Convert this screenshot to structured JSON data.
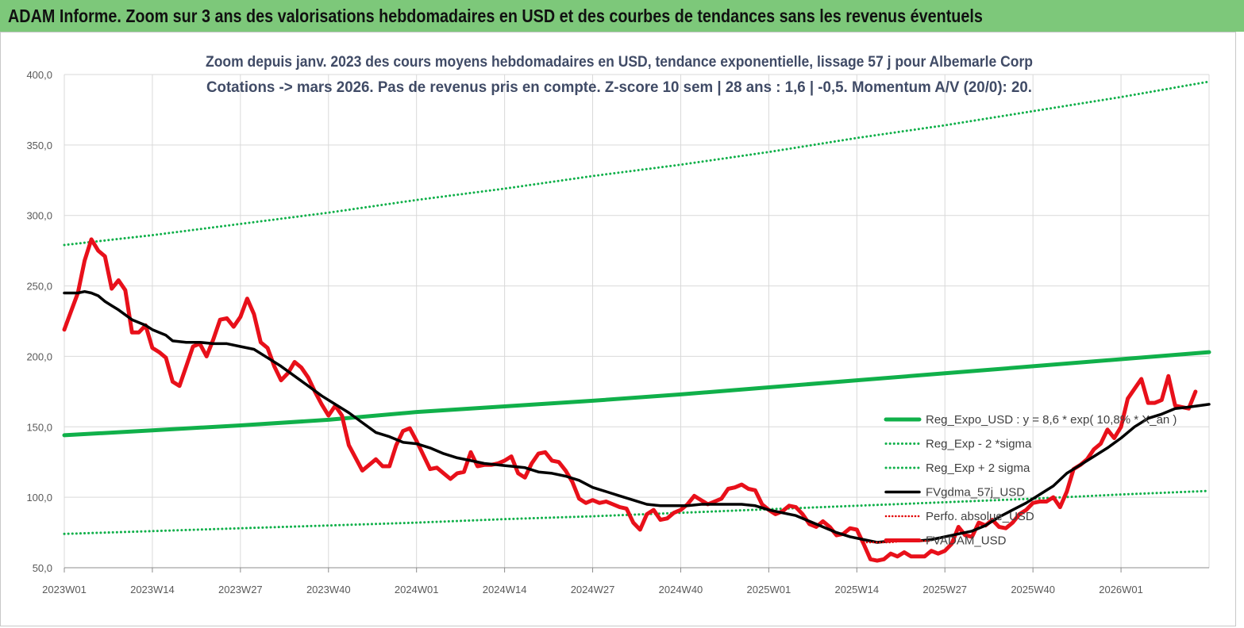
{
  "header": {
    "title": "ADAM Informe. Zoom sur 3 ans des valorisations hebdomadaires en USD et des courbes de tendances sans les revenus éventuels"
  },
  "chart_data": {
    "type": "line",
    "subtitle_line1": "Zoom depuis janv. 2023 des cours moyens hebdomadaires en USD, tendance exponentielle, lissage 57 j pour Albemarle Corp",
    "subtitle_line2": "Cotations -> mars 2026. Pas de revenus pris en  compte. Z-score 10 sem  | 28 ans : 1,6  | -0,5. Momentum A/V (20/0): 20.",
    "ylim": [
      50,
      400
    ],
    "yticks": [
      "400,0",
      "350,0",
      "300,0",
      "250,0",
      "200,0",
      "150,0",
      "100,0",
      "50,0"
    ],
    "xticks": [
      "2023W01",
      "2023W14",
      "2023W27",
      "2023W40",
      "2024W01",
      "2024W14",
      "2024W27",
      "2024W40",
      "2025W01",
      "2025W14",
      "2025W27",
      "2025W40",
      "2026W01"
    ],
    "grid": true,
    "legend_position": "right",
    "series": [
      {
        "name": "Reg_Expo_USD : y = 8,6  * exp( 10,8% * X_an )",
        "color": "#10b04a",
        "style": "solid-thick",
        "values": [
          [
            0,
            144
          ],
          [
            13,
            147.5
          ],
          [
            26,
            151
          ],
          [
            39,
            155
          ],
          [
            52,
            160.5
          ],
          [
            65,
            164.5
          ],
          [
            78,
            168.5
          ],
          [
            91,
            173
          ],
          [
            104,
            178
          ],
          [
            117,
            183
          ],
          [
            130,
            188
          ],
          [
            143,
            193
          ],
          [
            156,
            198
          ],
          [
            169,
            203
          ]
        ]
      },
      {
        "name": "Reg_Exp - 2 *sigma",
        "color": "#10b04a",
        "style": "dotted",
        "values": [
          [
            0,
            74
          ],
          [
            13,
            76
          ],
          [
            26,
            78
          ],
          [
            39,
            80
          ],
          [
            52,
            82
          ],
          [
            65,
            84.5
          ],
          [
            78,
            86.5
          ],
          [
            91,
            89
          ],
          [
            104,
            91.5
          ],
          [
            117,
            94
          ],
          [
            130,
            96.5
          ],
          [
            143,
            99
          ],
          [
            156,
            102
          ],
          [
            169,
            104.5
          ]
        ]
      },
      {
        "name": "Reg_Exp + 2 sigma",
        "color": "#10b04a",
        "style": "dotted",
        "values": [
          [
            0,
            279
          ],
          [
            13,
            286
          ],
          [
            26,
            294
          ],
          [
            39,
            302
          ],
          [
            52,
            311
          ],
          [
            65,
            319
          ],
          [
            78,
            328
          ],
          [
            91,
            336
          ],
          [
            104,
            345
          ],
          [
            117,
            355
          ],
          [
            130,
            364
          ],
          [
            143,
            374
          ],
          [
            156,
            384
          ],
          [
            169,
            395
          ]
        ]
      },
      {
        "name": "FVgdma_57j_USD",
        "color": "#000000",
        "style": "solid",
        "values": [
          [
            0,
            245
          ],
          [
            2,
            245
          ],
          [
            3,
            246
          ],
          [
            4,
            245
          ],
          [
            5,
            243
          ],
          [
            6,
            239
          ],
          [
            7,
            236
          ],
          [
            8,
            233
          ],
          [
            10,
            226
          ],
          [
            12,
            222
          ],
          [
            13,
            219
          ],
          [
            15,
            215
          ],
          [
            16,
            211
          ],
          [
            18,
            210
          ],
          [
            20,
            210
          ],
          [
            22,
            209
          ],
          [
            24,
            209
          ],
          [
            26,
            207
          ],
          [
            28,
            205
          ],
          [
            30,
            199
          ],
          [
            32,
            193
          ],
          [
            34,
            186
          ],
          [
            36,
            179
          ],
          [
            38,
            172
          ],
          [
            40,
            166
          ],
          [
            42,
            160
          ],
          [
            44,
            153
          ],
          [
            46,
            146
          ],
          [
            48,
            143
          ],
          [
            50,
            139
          ],
          [
            52,
            138
          ],
          [
            54,
            135
          ],
          [
            56,
            131
          ],
          [
            58,
            128
          ],
          [
            60,
            126
          ],
          [
            62,
            124
          ],
          [
            64,
            123
          ],
          [
            66,
            122
          ],
          [
            68,
            121
          ],
          [
            70,
            118
          ],
          [
            72,
            117
          ],
          [
            74,
            115
          ],
          [
            76,
            112
          ],
          [
            78,
            107
          ],
          [
            80,
            104
          ],
          [
            82,
            101
          ],
          [
            84,
            98
          ],
          [
            86,
            95
          ],
          [
            88,
            94
          ],
          [
            90,
            94
          ],
          [
            92,
            94
          ],
          [
            94,
            95
          ],
          [
            96,
            95
          ],
          [
            98,
            95
          ],
          [
            100,
            95
          ],
          [
            102,
            94
          ],
          [
            104,
            91
          ],
          [
            106,
            89
          ],
          [
            108,
            87
          ],
          [
            110,
            83
          ],
          [
            112,
            79
          ],
          [
            114,
            75
          ],
          [
            116,
            72
          ],
          [
            118,
            70
          ],
          [
            120,
            68
          ],
          [
            122,
            69
          ],
          [
            124,
            69
          ],
          [
            126,
            69
          ],
          [
            128,
            70
          ],
          [
            130,
            72
          ],
          [
            132,
            74
          ],
          [
            134,
            76
          ],
          [
            136,
            80
          ],
          [
            138,
            86
          ],
          [
            140,
            91
          ],
          [
            142,
            96
          ],
          [
            144,
            102
          ],
          [
            146,
            108
          ],
          [
            148,
            117
          ],
          [
            150,
            123
          ],
          [
            152,
            129
          ],
          [
            154,
            135
          ],
          [
            156,
            142
          ],
          [
            158,
            150
          ],
          [
            160,
            156
          ],
          [
            162,
            159
          ],
          [
            164,
            163
          ],
          [
            166,
            164
          ],
          [
            169,
            166
          ]
        ]
      },
      {
        "name": "Perfo. absolue_USD",
        "color": "#e00000",
        "style": "dotted-thin",
        "values": [
          [
            118,
            68
          ],
          [
            120,
            68
          ],
          [
            122,
            68
          ],
          [
            124,
            69
          ],
          [
            126,
            69
          ],
          [
            128,
            69
          ]
        ]
      },
      {
        "name": "FVADAM_USD",
        "color": "#e8101a",
        "style": "solid-thick",
        "values": [
          [
            0,
            219
          ],
          [
            1,
            232
          ],
          [
            2,
            245
          ],
          [
            3,
            268
          ],
          [
            4,
            283
          ],
          [
            5,
            275
          ],
          [
            6,
            271
          ],
          [
            7,
            248
          ],
          [
            8,
            254
          ],
          [
            9,
            247
          ],
          [
            10,
            217
          ],
          [
            11,
            217
          ],
          [
            12,
            222
          ],
          [
            13,
            206
          ],
          [
            14,
            203
          ],
          [
            15,
            199
          ],
          [
            16,
            182
          ],
          [
            17,
            179
          ],
          [
            18,
            193
          ],
          [
            19,
            207
          ],
          [
            20,
            209
          ],
          [
            21,
            200
          ],
          [
            22,
            212
          ],
          [
            23,
            226
          ],
          [
            24,
            227
          ],
          [
            25,
            221
          ],
          [
            26,
            228
          ],
          [
            27,
            241
          ],
          [
            28,
            230
          ],
          [
            29,
            210
          ],
          [
            30,
            206
          ],
          [
            31,
            193
          ],
          [
            32,
            183
          ],
          [
            33,
            188
          ],
          [
            34,
            196
          ],
          [
            35,
            192
          ],
          [
            36,
            185
          ],
          [
            37,
            175
          ],
          [
            38,
            166
          ],
          [
            39,
            158
          ],
          [
            40,
            165
          ],
          [
            41,
            158
          ],
          [
            42,
            137
          ],
          [
            43,
            128
          ],
          [
            44,
            119
          ],
          [
            45,
            123
          ],
          [
            46,
            127
          ],
          [
            47,
            122
          ],
          [
            48,
            122
          ],
          [
            49,
            137
          ],
          [
            50,
            147
          ],
          [
            51,
            149
          ],
          [
            52,
            140
          ],
          [
            53,
            130
          ],
          [
            54,
            120
          ],
          [
            55,
            121
          ],
          [
            56,
            117
          ],
          [
            57,
            113
          ],
          [
            58,
            117
          ],
          [
            59,
            118
          ],
          [
            60,
            132
          ],
          [
            61,
            122
          ],
          [
            62,
            123
          ],
          [
            63,
            123
          ],
          [
            64,
            124
          ],
          [
            65,
            126
          ],
          [
            66,
            129
          ],
          [
            67,
            117
          ],
          [
            68,
            114
          ],
          [
            69,
            124
          ],
          [
            70,
            131
          ],
          [
            71,
            132
          ],
          [
            72,
            126
          ],
          [
            73,
            125
          ],
          [
            74,
            119
          ],
          [
            75,
            111
          ],
          [
            76,
            99
          ],
          [
            77,
            96
          ],
          [
            78,
            98
          ],
          [
            79,
            96
          ],
          [
            80,
            97
          ],
          [
            81,
            95
          ],
          [
            82,
            93
          ],
          [
            83,
            92
          ],
          [
            84,
            82
          ],
          [
            85,
            77
          ],
          [
            86,
            88
          ],
          [
            87,
            91
          ],
          [
            88,
            84
          ],
          [
            89,
            85
          ],
          [
            90,
            89
          ],
          [
            91,
            91
          ],
          [
            92,
            95
          ],
          [
            93,
            101
          ],
          [
            94,
            98
          ],
          [
            95,
            95
          ],
          [
            96,
            97
          ],
          [
            97,
            99
          ],
          [
            98,
            106
          ],
          [
            99,
            107
          ],
          [
            100,
            109
          ],
          [
            101,
            106
          ],
          [
            102,
            105
          ],
          [
            103,
            95
          ],
          [
            104,
            91
          ],
          [
            105,
            88
          ],
          [
            106,
            90
          ],
          [
            107,
            94
          ],
          [
            108,
            93
          ],
          [
            109,
            88
          ],
          [
            110,
            81
          ],
          [
            111,
            79
          ],
          [
            112,
            83
          ],
          [
            113,
            79
          ],
          [
            114,
            73
          ],
          [
            115,
            74
          ],
          [
            116,
            78
          ],
          [
            117,
            77
          ],
          [
            118,
            67
          ],
          [
            119,
            56
          ],
          [
            120,
            55
          ],
          [
            121,
            56
          ],
          [
            122,
            60
          ],
          [
            123,
            58
          ],
          [
            124,
            61
          ],
          [
            125,
            58
          ],
          [
            126,
            58
          ],
          [
            127,
            58
          ],
          [
            128,
            62
          ],
          [
            129,
            60
          ],
          [
            130,
            62
          ],
          [
            131,
            67
          ],
          [
            132,
            79
          ],
          [
            133,
            73
          ],
          [
            134,
            72
          ],
          [
            135,
            82
          ],
          [
            136,
            80
          ],
          [
            137,
            84
          ],
          [
            138,
            79
          ],
          [
            139,
            78
          ],
          [
            140,
            82
          ],
          [
            141,
            88
          ],
          [
            142,
            91
          ],
          [
            143,
            96
          ],
          [
            144,
            97
          ],
          [
            145,
            97
          ],
          [
            146,
            100
          ],
          [
            147,
            93
          ],
          [
            148,
            104
          ],
          [
            149,
            120
          ],
          [
            150,
            123
          ],
          [
            151,
            127
          ],
          [
            152,
            134
          ],
          [
            153,
            138
          ],
          [
            154,
            148
          ],
          [
            155,
            142
          ],
          [
            156,
            150
          ],
          [
            157,
            170
          ],
          [
            158,
            177
          ],
          [
            159,
            184
          ],
          [
            160,
            167
          ],
          [
            161,
            167
          ],
          [
            162,
            169
          ],
          [
            163,
            186
          ],
          [
            164,
            165
          ],
          [
            165,
            164
          ],
          [
            166,
            163
          ],
          [
            167,
            175
          ]
        ]
      }
    ]
  }
}
